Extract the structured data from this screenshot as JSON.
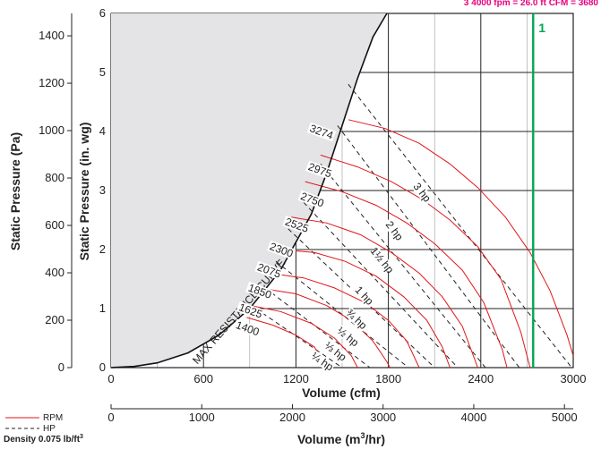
{
  "chart_data": {
    "type": "line",
    "header_note": "3 4000 fpm = 26.0 ft  CFM = 3680",
    "x_label": "Volume (cfm)",
    "x2_label_prefix": "Volume (m",
    "x2_label_sup": "3",
    "x2_label_suffix": "/hr)",
    "y_label": "Static Pressure (in. wg)",
    "y2_label": "Static Pressure (Pa)",
    "xlim": [
      0,
      3000
    ],
    "ylim": [
      0,
      6
    ],
    "x_ticks": [
      "0",
      "600",
      "1200",
      "1800",
      "2400",
      "3000"
    ],
    "x2_ticks": [
      "0",
      "1000",
      "2000",
      "3000",
      "4000",
      "5000"
    ],
    "y_ticks": [
      "0",
      "1",
      "2",
      "3",
      "4",
      "5",
      "6"
    ],
    "y2_ticks": [
      "0",
      "200",
      "400",
      "600",
      "800",
      "1000",
      "1200",
      "1400"
    ],
    "marker_line": {
      "label": "1",
      "x": 2740,
      "color": "#00a651"
    },
    "max_resistance_label": "MAX RESISTANCE CURVE",
    "max_resistance_curve": [
      [
        0,
        0
      ],
      [
        150,
        0.02
      ],
      [
        300,
        0.08
      ],
      [
        500,
        0.25
      ],
      [
        700,
        0.55
      ],
      [
        900,
        1.0
      ],
      [
        1100,
        1.65
      ],
      [
        1300,
        2.6
      ],
      [
        1400,
        3.3
      ],
      [
        1500,
        4.1
      ],
      [
        1600,
        4.9
      ],
      [
        1700,
        5.6
      ],
      [
        1790,
        6.0
      ]
    ],
    "rpm_series": [
      {
        "name": "1400",
        "points": [
          [
            880,
            0.85
          ],
          [
            1050,
            0.72
          ],
          [
            1200,
            0.55
          ],
          [
            1320,
            0.35
          ],
          [
            1400,
            0.0
          ]
        ]
      },
      {
        "name": "1625",
        "points": [
          [
            910,
            1.05
          ],
          [
            1100,
            0.95
          ],
          [
            1300,
            0.75
          ],
          [
            1450,
            0.5
          ],
          [
            1560,
            0.2
          ],
          [
            1600,
            0.0
          ]
        ]
      },
      {
        "name": "1850",
        "points": [
          [
            960,
            1.35
          ],
          [
            1200,
            1.25
          ],
          [
            1400,
            1.05
          ],
          [
            1560,
            0.8
          ],
          [
            1700,
            0.45
          ],
          [
            1790,
            0.1
          ],
          [
            1810,
            0.0
          ]
        ]
      },
      {
        "name": "2075",
        "points": [
          [
            1020,
            1.6
          ],
          [
            1250,
            1.52
          ],
          [
            1450,
            1.35
          ],
          [
            1650,
            1.1
          ],
          [
            1800,
            0.8
          ],
          [
            1920,
            0.45
          ],
          [
            2000,
            0.0
          ]
        ]
      },
      {
        "name": "2300",
        "points": [
          [
            1090,
            2.0
          ],
          [
            1320,
            1.95
          ],
          [
            1520,
            1.8
          ],
          [
            1720,
            1.55
          ],
          [
            1900,
            1.2
          ],
          [
            2050,
            0.8
          ],
          [
            2150,
            0.35
          ],
          [
            2200,
            0.0
          ]
        ]
      },
      {
        "name": "2525",
        "points": [
          [
            1170,
            2.55
          ],
          [
            1400,
            2.45
          ],
          [
            1620,
            2.25
          ],
          [
            1820,
            1.95
          ],
          [
            2000,
            1.6
          ],
          [
            2150,
            1.2
          ],
          [
            2280,
            0.7
          ],
          [
            2380,
            0.0
          ]
        ]
      },
      {
        "name": "2750",
        "points": [
          [
            1260,
            3.15
          ],
          [
            1500,
            2.98
          ],
          [
            1720,
            2.75
          ],
          [
            1920,
            2.45
          ],
          [
            2100,
            2.1
          ],
          [
            2280,
            1.65
          ],
          [
            2420,
            1.1
          ],
          [
            2540,
            0.3
          ],
          [
            2570,
            0.0
          ]
        ]
      },
      {
        "name": "2975",
        "points": [
          [
            1360,
            3.6
          ],
          [
            1600,
            3.4
          ],
          [
            1820,
            3.15
          ],
          [
            2020,
            2.85
          ],
          [
            2200,
            2.5
          ],
          [
            2380,
            2.05
          ],
          [
            2530,
            1.5
          ],
          [
            2660,
            0.6
          ],
          [
            2720,
            0.0
          ]
        ]
      },
      {
        "name": "3274",
        "points": [
          [
            1540,
            4.2
          ],
          [
            1780,
            4.05
          ],
          [
            2000,
            3.8
          ],
          [
            2200,
            3.45
          ],
          [
            2380,
            3.05
          ],
          [
            2560,
            2.55
          ],
          [
            2720,
            1.95
          ],
          [
            2850,
            1.3
          ],
          [
            2960,
            0.55
          ],
          [
            3000,
            0.2
          ]
        ]
      }
    ],
    "rpm_label_positions": [
      [
        880,
        0.62
      ],
      [
        900,
        0.92
      ],
      [
        960,
        1.25
      ],
      [
        1020,
        1.6
      ],
      [
        1100,
        1.95
      ],
      [
        1200,
        2.37
      ],
      [
        1300,
        2.8
      ],
      [
        1350,
        3.3
      ],
      [
        1360,
        3.95
      ]
    ],
    "hp_series": [
      {
        "name": "¼ hp",
        "points": [
          [
            940,
            1.0
          ],
          [
            1500,
            0.0
          ]
        ]
      },
      {
        "name": "⅓ hp",
        "points": [
          [
            1000,
            1.35
          ],
          [
            1680,
            0.0
          ]
        ]
      },
      {
        "name": "½ hp",
        "points": [
          [
            1070,
            1.8
          ],
          [
            1930,
            0.0
          ]
        ]
      },
      {
        "name": "¾ hp",
        "points": [
          [
            1150,
            2.35
          ],
          [
            2100,
            0.0
          ]
        ]
      },
      {
        "name": "1 hp",
        "points": [
          [
            1250,
            2.8
          ],
          [
            2250,
            0.0
          ]
        ]
      },
      {
        "name": "1½ hp",
        "points": [
          [
            1360,
            3.45
          ],
          [
            2430,
            0.0
          ]
        ]
      },
      {
        "name": "2 hp",
        "points": [
          [
            1470,
            4.1
          ],
          [
            2650,
            0.0
          ]
        ]
      },
      {
        "name": "3 hp",
        "points": [
          [
            1540,
            4.8
          ],
          [
            2990,
            0.0
          ]
        ]
      }
    ],
    "hp_label_positions": [
      [
        1365,
        0.08
      ],
      [
        1450,
        0.25
      ],
      [
        1530,
        0.5
      ],
      [
        1585,
        0.8
      ],
      [
        1635,
        1.2
      ],
      [
        1750,
        1.8
      ],
      [
        1830,
        2.3
      ],
      [
        2010,
        2.95
      ]
    ],
    "legend": {
      "rpm_label": "RPM",
      "hp_label": "HP",
      "density_prefix": "Density 0.075 lb/ft",
      "density_sup": "3"
    },
    "colors": {
      "rpm": "#e0161b",
      "hp": "#222222",
      "marker": "#00a651",
      "header": "#e6007e",
      "shade": "#e4e4e6",
      "grid": "#222222"
    }
  }
}
